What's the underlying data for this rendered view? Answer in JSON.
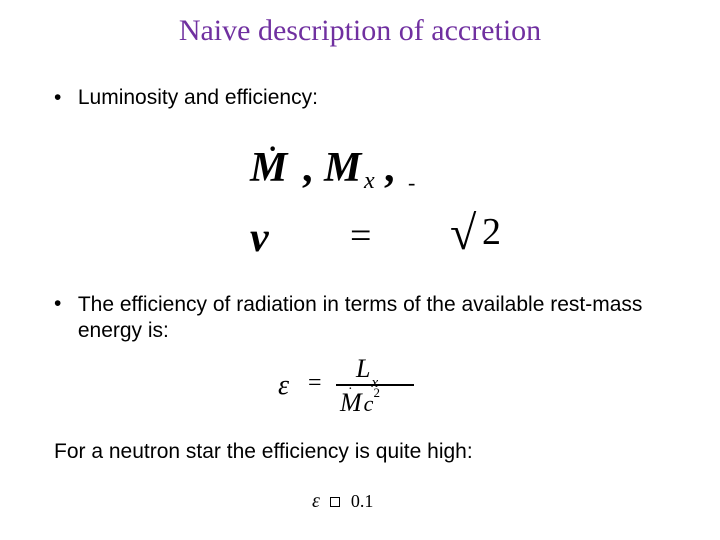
{
  "colors": {
    "title": "#7030a0",
    "text": "#000000",
    "background": "#ffffff"
  },
  "typography": {
    "title_fontfamily": "Georgia, serif",
    "title_fontsize_pt": 22,
    "body_fontfamily": "Arial, sans-serif",
    "body_fontsize_pt": 16,
    "equation_fontfamily": "Times New Roman, serif"
  },
  "title": "Naive description of accretion",
  "bullets": {
    "b1": "Luminosity and efficiency:",
    "b2": "The efficiency of radiation in terms of the available rest-mass energy is:"
  },
  "plain_line": "For a neutron star the efficiency is quite high:",
  "equations": {
    "eq1": {
      "desc": "mass-accretion symbols line",
      "M1": "M",
      "dot_over_M1": "·",
      "comma1": ",",
      "M2": "M",
      "sub_x": "x",
      "comma2": ",",
      "trail_mark": "‐"
    },
    "eq2": {
      "desc": "partial equation with square root of 2",
      "lhs_symbol": "ν",
      "equals": "=",
      "sqrt": "√",
      "radicand": "2"
    },
    "eq3": {
      "desc": "epsilon = L_x / (Mdot c^2)",
      "epsilon": "ε",
      "equals": "=",
      "numerator_L": "L",
      "numerator_sub": "x",
      "denominator_M": "M",
      "denominator_dot": "·",
      "denominator_c": "c",
      "denominator_exp": "2"
    },
    "eq4": {
      "desc": "epsilon approx 0.1 (box glyph for approx)",
      "epsilon": "ε",
      "value": "0.1"
    }
  }
}
